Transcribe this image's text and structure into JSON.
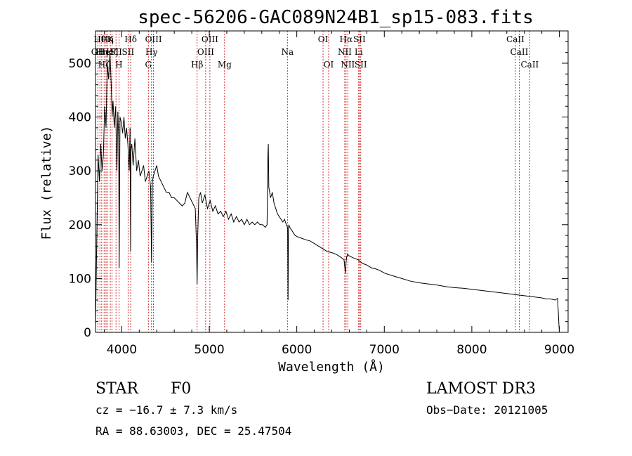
{
  "chart_data": {
    "type": "line",
    "title": "spec-56206-GAC089N24B1_sp15-083.fits",
    "xlabel": "Wavelength (Å)",
    "ylabel": "Flux (relative)",
    "xlim": [
      3700,
      9100
    ],
    "ylim": [
      0,
      560
    ],
    "xticks": [
      4000,
      5000,
      6000,
      7000,
      8000,
      9000
    ],
    "xtick_labels": [
      "4000",
      "5000",
      "6000",
      "7000",
      "8000",
      "9000"
    ],
    "yticks": [
      0,
      100,
      200,
      300,
      400,
      500
    ],
    "ytick_labels": [
      "0",
      "100",
      "200",
      "300",
      "400",
      "500"
    ],
    "series": [
      {
        "name": "spectrum",
        "x": [
          3700,
          3715,
          3730,
          3745,
          3760,
          3775,
          3790,
          3805,
          3820,
          3835,
          3850,
          3865,
          3880,
          3890,
          3900,
          3915,
          3930,
          3945,
          3955,
          3965,
          3970,
          3980,
          3995,
          4010,
          4025,
          4040,
          4055,
          4070,
          4085,
          4095,
          4101,
          4105,
          4115,
          4130,
          4150,
          4170,
          4190,
          4210,
          4230,
          4250,
          4270,
          4290,
          4310,
          4330,
          4340,
          4350,
          4360,
          4380,
          4400,
          4420,
          4450,
          4480,
          4510,
          4540,
          4570,
          4600,
          4630,
          4660,
          4690,
          4720,
          4750,
          4780,
          4810,
          4840,
          4855,
          4861,
          4868,
          4880,
          4900,
          4920,
          4950,
          4980,
          5010,
          5040,
          5070,
          5100,
          5130,
          5160,
          5190,
          5220,
          5250,
          5280,
          5310,
          5340,
          5370,
          5400,
          5430,
          5460,
          5490,
          5520,
          5550,
          5580,
          5610,
          5640,
          5660,
          5670,
          5675,
          5680,
          5690,
          5700,
          5720,
          5740,
          5760,
          5780,
          5800,
          5820,
          5840,
          5860,
          5880,
          5895,
          5900,
          5905,
          5910,
          5920,
          5940,
          5960,
          5980,
          6000,
          6050,
          6100,
          6150,
          6200,
          6250,
          6300,
          6350,
          6400,
          6450,
          6500,
          6540,
          6555,
          6563,
          6570,
          6580,
          6600,
          6650,
          6700,
          6750,
          6800,
          6850,
          6900,
          6950,
          7000,
          7100,
          7200,
          7300,
          7400,
          7500,
          7600,
          7700,
          7800,
          7900,
          8000,
          8100,
          8200,
          8300,
          8400,
          8500,
          8600,
          8700,
          8800,
          8850,
          8900,
          8950,
          8980,
          9000
        ],
        "y": [
          10,
          180,
          330,
          280,
          350,
          300,
          330,
          420,
          380,
          500,
          470,
          520,
          460,
          400,
          430,
          380,
          420,
          300,
          410,
          360,
          120,
          400,
          390,
          370,
          400,
          360,
          380,
          350,
          300,
          380,
          150,
          340,
          350,
          310,
          360,
          300,
          320,
          290,
          300,
          310,
          280,
          290,
          300,
          270,
          130,
          280,
          290,
          300,
          310,
          290,
          280,
          270,
          260,
          260,
          250,
          250,
          245,
          240,
          235,
          240,
          260,
          250,
          240,
          230,
          160,
          90,
          180,
          250,
          260,
          240,
          255,
          230,
          245,
          225,
          235,
          220,
          225,
          215,
          225,
          210,
          220,
          205,
          215,
          205,
          210,
          200,
          210,
          200,
          205,
          200,
          205,
          200,
          200,
          195,
          200,
          330,
          350,
          270,
          260,
          250,
          260,
          240,
          230,
          220,
          215,
          210,
          205,
          210,
          200,
          195,
          60,
          195,
          200,
          195,
          190,
          185,
          180,
          178,
          175,
          172,
          170,
          165,
          160,
          155,
          150,
          148,
          145,
          140,
          135,
          110,
          130,
          140,
          145,
          142,
          138,
          135,
          128,
          125,
          120,
          118,
          115,
          110,
          105,
          100,
          95,
          92,
          90,
          88,
          85,
          83,
          82,
          80,
          78,
          76,
          74,
          72,
          70,
          68,
          66,
          64,
          62,
          62,
          60,
          63,
          0
        ]
      }
    ],
    "line_markers": [
      {
        "wavelength": 3727,
        "label": "OII",
        "row": 1
      },
      {
        "wavelength": 3750,
        "label": "Hθ",
        "row": 0
      },
      {
        "wavelength": 3771,
        "label": "Hη",
        "row": 1
      },
      {
        "wavelength": 3798,
        "label": "Hζ",
        "row": 2
      },
      {
        "wavelength": 3820,
        "label": "HeI",
        "row": 1
      },
      {
        "wavelength": 3835,
        "label": "Hη",
        "row": 0
      },
      {
        "wavelength": 3869,
        "label": "K",
        "row": 0
      },
      {
        "wavelength": 3889,
        "label": "Hζ",
        "row": 1
      },
      {
        "wavelength": 3934,
        "label": "SII",
        "row": 1
      },
      {
        "wavelength": 3968,
        "label": "H",
        "row": 2
      },
      {
        "wavelength": 4102,
        "label": "Hδ",
        "row": 0
      },
      {
        "wavelength": 4072,
        "label": "SII",
        "row": 1
      },
      {
        "wavelength": 4304,
        "label": "G",
        "row": 2
      },
      {
        "wavelength": 4340,
        "label": "Hγ",
        "row": 1
      },
      {
        "wavelength": 4363,
        "label": "OIII",
        "row": 0
      },
      {
        "wavelength": 4861,
        "label": "Hβ",
        "row": 2
      },
      {
        "wavelength": 4959,
        "label": "OIII",
        "row": 1
      },
      {
        "wavelength": 5007,
        "label": "OIII",
        "row": 0
      },
      {
        "wavelength": 5175,
        "label": "Mg",
        "row": 2
      },
      {
        "wavelength": 5893,
        "label": "Na",
        "row": 1
      },
      {
        "wavelength": 6300,
        "label": "OI",
        "row": 0
      },
      {
        "wavelength": 6364,
        "label": "OI",
        "row": 2
      },
      {
        "wavelength": 6548,
        "label": "NII",
        "row": 1
      },
      {
        "wavelength": 6563,
        "label": "Hα",
        "row": 0
      },
      {
        "wavelength": 6583,
        "label": "NII",
        "row": 2
      },
      {
        "wavelength": 6707,
        "label": "Li",
        "row": 1
      },
      {
        "wavelength": 6716,
        "label": "SII",
        "row": 0
      },
      {
        "wavelength": 6731,
        "label": "SII",
        "row": 2
      },
      {
        "wavelength": 8498,
        "label": "CaII",
        "row": 0
      },
      {
        "wavelength": 8542,
        "label": "CaII",
        "row": 1
      },
      {
        "wavelength": 8662,
        "label": "CaII",
        "row": 2
      }
    ]
  },
  "footer": {
    "object_class": "STAR",
    "subclass": "F0",
    "survey": "LAMOST DR3",
    "cz": "cz = −16.7 ± 7.3 km/s",
    "obs_date": "Obs−Date: 20121005",
    "coords": "RA =  88.63003, DEC =  25.47504"
  },
  "colors": {
    "spectrum": "#000000",
    "markers": "#cc0000",
    "axes": "#000000"
  }
}
